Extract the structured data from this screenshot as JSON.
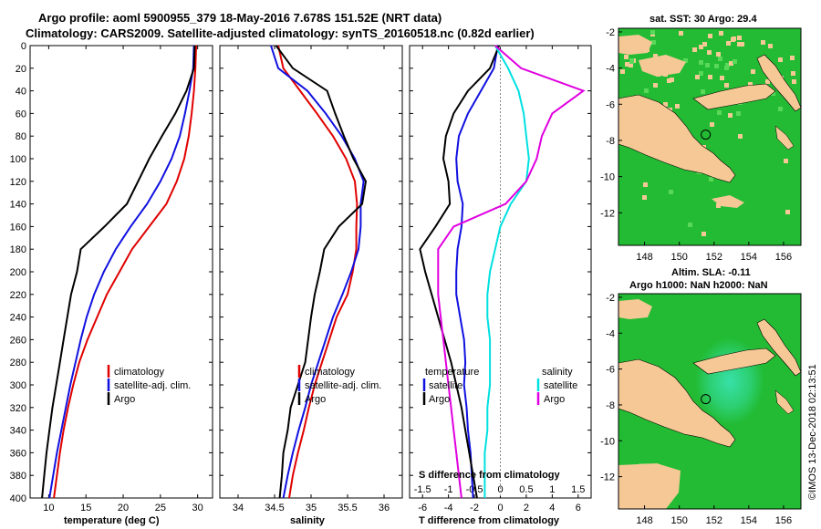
{
  "title_line1": "Argo profile: aoml 5900955_379 18-May-2016 7.678S 151.52E (NRT data)",
  "title_line2": "Climatology: CARS2009. Satellite-adjusted climatology: synTS_20160518.nc (0.82d earlier)",
  "watermark": "©IMOS 13-Dec-2018 02:13:51",
  "colors": {
    "climatology": "#e00000",
    "satellite": "#1010e0",
    "argo": "#000000",
    "cyan": "#00e0e0",
    "magenta": "#e000e0",
    "land": "#f5c896",
    "ocean": "#22bb33"
  },
  "chart_data": [
    {
      "type": "line",
      "id": "temperature",
      "xlabel": "temperature (deg C)",
      "ylabel": "",
      "xlim": [
        7.5,
        32
      ],
      "ylim": [
        400,
        0
      ],
      "xticks": [
        "10",
        "15",
        "20",
        "25",
        "30"
      ],
      "xtick_values": [
        10,
        15,
        20,
        25,
        30
      ],
      "yticks": [
        "0",
        "20",
        "40",
        "60",
        "80",
        "100",
        "120",
        "140",
        "160",
        "180",
        "200",
        "220",
        "240",
        "260",
        "280",
        "300",
        "320",
        "340",
        "360",
        "380",
        "400"
      ],
      "legend": [
        "climatology",
        "satellite-adj. clim.",
        "Argo"
      ],
      "series": [
        {
          "name": "climatology",
          "color": "red",
          "depth": [
            0,
            20,
            40,
            60,
            80,
            100,
            120,
            140,
            160,
            180,
            200,
            220,
            240,
            260,
            280,
            300,
            320,
            340,
            360,
            380,
            400
          ],
          "values": [
            29.8,
            29.7,
            29.5,
            29.2,
            28.8,
            28.2,
            27.2,
            25.8,
            23.5,
            21.2,
            19.5,
            17.8,
            16.5,
            15.2,
            14.1,
            13.3,
            12.6,
            12.0,
            11.5,
            11.1,
            10.7
          ]
        },
        {
          "name": "satellite-adj. clim.",
          "color": "blue",
          "depth": [
            0,
            20,
            40,
            60,
            80,
            100,
            120,
            140,
            160,
            180,
            200,
            220,
            240,
            260,
            280,
            300,
            320,
            340,
            360,
            380,
            400
          ],
          "values": [
            29.5,
            29.4,
            28.9,
            28.3,
            27.6,
            26.5,
            25.0,
            23.2,
            21.0,
            19.0,
            17.4,
            16.1,
            15.1,
            14.3,
            13.6,
            12.9,
            12.3,
            11.7,
            11.1,
            10.6,
            10.1
          ]
        },
        {
          "name": "Argo",
          "color": "black",
          "depth": [
            0,
            20,
            40,
            60,
            80,
            100,
            120,
            140,
            160,
            180,
            200,
            220,
            240,
            260,
            280,
            300,
            320,
            340,
            360,
            380,
            400
          ],
          "values": [
            29.6,
            29.5,
            28.5,
            27.0,
            25.2,
            23.5,
            22.0,
            20.5,
            17.5,
            14.3,
            13.8,
            13.0,
            12.5,
            12.0,
            11.5,
            11.0,
            10.5,
            10.1,
            9.7,
            9.4,
            9.1
          ]
        }
      ]
    },
    {
      "type": "line",
      "id": "salinity",
      "xlabel": "salinity",
      "ylabel": "",
      "xlim": [
        33.75,
        36.25
      ],
      "ylim": [
        400,
        0
      ],
      "xticks": [
        "34",
        "34.5",
        "35",
        "35.5",
        "36"
      ],
      "xtick_values": [
        34,
        34.5,
        35,
        35.5,
        36
      ],
      "legend": [
        "climatology",
        "satellite-adj. clim.",
        "Argo"
      ],
      "series": [
        {
          "name": "climatology",
          "color": "red",
          "depth": [
            0,
            20,
            40,
            60,
            80,
            100,
            120,
            140,
            160,
            180,
            200,
            220,
            240,
            260,
            280,
            300,
            320,
            340,
            360,
            380,
            400
          ],
          "values": [
            34.55,
            34.62,
            34.85,
            35.08,
            35.3,
            35.48,
            35.6,
            35.63,
            35.62,
            35.62,
            35.57,
            35.5,
            35.35,
            35.25,
            35.15,
            35.05,
            34.97,
            34.9,
            34.82,
            34.75,
            34.7
          ]
        },
        {
          "name": "satellite-adj. clim.",
          "color": "blue",
          "depth": [
            0,
            20,
            40,
            60,
            80,
            100,
            120,
            140,
            160,
            180,
            200,
            220,
            240,
            260,
            280,
            300,
            320,
            340,
            360,
            380,
            400
          ],
          "values": [
            34.45,
            34.55,
            34.95,
            35.2,
            35.42,
            35.6,
            35.72,
            35.68,
            35.68,
            35.65,
            35.55,
            35.43,
            35.3,
            35.2,
            35.1,
            35.0,
            34.92,
            34.83,
            34.75,
            34.68,
            34.62
          ]
        },
        {
          "name": "Argo",
          "color": "black",
          "depth": [
            0,
            20,
            40,
            60,
            80,
            100,
            120,
            140,
            160,
            180,
            200,
            220,
            240,
            260,
            280,
            300,
            320,
            340,
            360,
            380,
            400
          ],
          "values": [
            34.52,
            34.75,
            35.22,
            35.33,
            35.45,
            35.58,
            35.75,
            35.7,
            35.38,
            35.18,
            35.12,
            35.05,
            35.0,
            34.96,
            34.92,
            34.82,
            34.72,
            34.68,
            34.62,
            34.6,
            34.57
          ]
        }
      ]
    },
    {
      "type": "line",
      "id": "differences",
      "xlabel": "T difference from climatology",
      "xlabel_top": "S difference from climatology",
      "xlim": [
        -7,
        7
      ],
      "ylim": [
        400,
        0
      ],
      "xticks": [
        "-6",
        "-4",
        "-2",
        "0",
        "2",
        "4",
        "6"
      ],
      "xtick_values": [
        -6,
        -4,
        -2,
        0,
        2,
        4,
        6
      ],
      "xticks_top": [
        "-1.5",
        "-1",
        "-0.5",
        "0",
        "0.5",
        "1",
        "1.5"
      ],
      "xtick_top_values": [
        -1.5,
        -1,
        -0.5,
        0,
        0.5,
        1,
        1.5
      ],
      "legend_left_title": "temperature",
      "legend_left": [
        "satellite",
        "Argo"
      ],
      "legend_right_title": "salinity",
      "legend_right": [
        "satellite",
        "Argo"
      ],
      "series": [
        {
          "name": "temperature satellite",
          "color": "blue",
          "depth": [
            0,
            20,
            40,
            60,
            80,
            100,
            120,
            140,
            160,
            180,
            200,
            220,
            240,
            260,
            280,
            300,
            320,
            340,
            360,
            380,
            400
          ],
          "values": [
            -0.2,
            -0.5,
            -1.5,
            -2.5,
            -3.2,
            -3.4,
            -3.3,
            -2.9,
            -3.0,
            -3.3,
            -3.4,
            -3.4,
            -3.1,
            -2.8,
            -2.7,
            -2.8,
            -2.6,
            -2.5,
            -2.3,
            -2.2,
            -2.1
          ]
        },
        {
          "name": "temperature Argo",
          "color": "black",
          "depth": [
            0,
            20,
            40,
            60,
            80,
            100,
            120,
            140,
            160,
            180,
            200,
            220,
            240,
            260,
            280,
            300,
            320,
            340,
            360,
            380,
            400
          ],
          "values": [
            -0.1,
            -0.8,
            -2.5,
            -3.6,
            -4.2,
            -4.4,
            -4.0,
            -3.9,
            -5.0,
            -6.2,
            -5.8,
            -5.3,
            -4.8,
            -4.3,
            -3.8,
            -3.4,
            -3.0,
            -2.7,
            -2.4,
            -2.1,
            -1.8
          ]
        },
        {
          "name": "salinity satellite",
          "color": "cyan",
          "depth": [
            0,
            20,
            40,
            60,
            80,
            100,
            120,
            140,
            160,
            180,
            200,
            220,
            240,
            260,
            280,
            300,
            320,
            340,
            360,
            380,
            400
          ],
          "values": [
            -0.1,
            0.15,
            0.35,
            0.45,
            0.5,
            0.55,
            0.5,
            0.2,
            0.0,
            -0.1,
            -0.2,
            -0.25,
            -0.25,
            -0.2,
            -0.2,
            -0.2,
            -0.25,
            -0.25,
            -0.3,
            -0.3,
            -0.3
          ]
        },
        {
          "name": "salinity Argo",
          "color": "magenta",
          "depth": [
            0,
            20,
            40,
            60,
            80,
            100,
            120,
            140,
            160,
            180,
            200,
            220,
            240,
            260,
            280,
            300,
            320,
            340,
            360,
            380,
            400
          ],
          "values": [
            -0.1,
            0.4,
            1.6,
            1.0,
            0.8,
            0.7,
            0.5,
            0.1,
            -0.9,
            -1.2,
            -1.2,
            -1.2,
            -1.15,
            -1.1,
            -1.05,
            -1.0,
            -0.95,
            -0.9,
            -0.85,
            -0.8,
            -0.75
          ]
        }
      ]
    },
    {
      "type": "heatmap",
      "id": "sst-map",
      "title": "sat. SST: 30 Argo: 29.4",
      "xlim": [
        146.5,
        157
      ],
      "ylim": [
        -13.8,
        -1.8
      ],
      "xticks": [
        "148",
        "150",
        "152",
        "154",
        "156"
      ],
      "xtick_values": [
        148,
        150,
        152,
        154,
        156
      ],
      "yticks": [
        "-2",
        "-4",
        "-6",
        "-8",
        "-10",
        "-12"
      ],
      "ytick_values": [
        -2,
        -4,
        -6,
        -8,
        -10,
        -12
      ],
      "argo_lon": 151.52,
      "argo_lat": -7.678
    },
    {
      "type": "heatmap",
      "id": "sla-map",
      "title": "Altim. SLA: -0.11",
      "subtitle": "Argo h1000: NaN h2000: NaN",
      "xlim": [
        146.5,
        157
      ],
      "ylim": [
        -13.8,
        -1.8
      ],
      "xticks": [
        "148",
        "150",
        "152",
        "154",
        "156"
      ],
      "xtick_values": [
        148,
        150,
        152,
        154,
        156
      ],
      "yticks": [
        "-2",
        "-4",
        "-6",
        "-8",
        "-10",
        "-12"
      ],
      "ytick_values": [
        -2,
        -4,
        -6,
        -8,
        -10,
        -12
      ],
      "argo_lon": 151.52,
      "argo_lat": -7.678
    }
  ]
}
